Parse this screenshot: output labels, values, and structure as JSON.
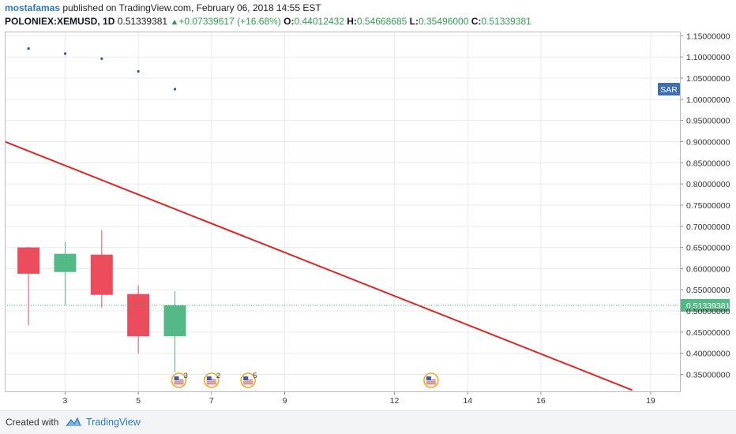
{
  "header": {
    "author": "mostafamas",
    "published_text": "published on TradingView.com, February 06, 2018 14:55 EST",
    "symbol": "POLONIEX:XEMUSD, 1D",
    "last": "0.51339381",
    "change_arrow": "▲",
    "change": "+0.07339617 (+16.68%)",
    "open_label": "O:",
    "open": "0.44012432",
    "high_label": "H:",
    "high": "0.54668685",
    "low_label": "L:",
    "low": "0.35496000",
    "close_label": "C:",
    "close": "0.51339381"
  },
  "footer": {
    "created_with": "Created with",
    "brand": "TradingView",
    "logo_icon": "tradingview-cloud-icon"
  },
  "colors": {
    "up": "#53b987",
    "down": "#eb4d5c",
    "trendline": "#e02424",
    "sar_dots": "#3a4f9c",
    "price_line": "#3cb371",
    "grid": "#e9eaec",
    "price_tag_bg": "#53b987",
    "sar_tag_bg": "#3c6fb4",
    "event_icon": "us-flag-event-icon"
  },
  "chart_data": {
    "type": "candlestick",
    "y_axis": {
      "min": 0.31,
      "max": 1.16,
      "ticks": [
        1.15,
        1.1,
        1.05,
        1.0,
        0.95,
        0.9,
        0.85,
        0.8,
        0.75,
        0.7,
        0.65,
        0.6,
        0.55,
        0.5,
        0.45,
        0.4,
        0.35
      ],
      "tick_labels": [
        "1.15000000",
        "1.10000000",
        "1.05000000",
        "1.00000000",
        "0.95000000",
        "0.90000000",
        "0.85000000",
        "0.80000000",
        "0.75000000",
        "0.70000000",
        "0.65000000",
        "0.60000000",
        "0.55000000",
        "0.50000000",
        "0.45000000",
        "0.40000000",
        "0.35000000"
      ]
    },
    "x_axis": {
      "min": 1.35,
      "max": 19.8,
      "ticks": [
        3,
        5,
        7,
        9,
        12,
        14,
        16,
        19
      ],
      "tick_labels": [
        "3",
        "5",
        "7",
        "9",
        "12",
        "14",
        "16",
        "19"
      ]
    },
    "candles": [
      {
        "x": 2,
        "open": 0.65,
        "high": 0.652,
        "low": 0.466,
        "close": 0.588
      },
      {
        "x": 3,
        "open": 0.592,
        "high": 0.664,
        "low": 0.514,
        "close": 0.635
      },
      {
        "x": 4,
        "open": 0.633,
        "high": 0.691,
        "low": 0.507,
        "close": 0.538
      },
      {
        "x": 5,
        "open": 0.54,
        "high": 0.561,
        "low": 0.4,
        "close": 0.44
      },
      {
        "x": 6,
        "open": 0.44012432,
        "high": 0.54668685,
        "low": 0.35496,
        "close": 0.51339381
      }
    ],
    "sar": [
      {
        "x": 2,
        "y": 1.12
      },
      {
        "x": 3,
        "y": 1.108
      },
      {
        "x": 4,
        "y": 1.096
      },
      {
        "x": 5,
        "y": 1.066
      },
      {
        "x": 6,
        "y": 1.024
      }
    ],
    "sar_label": "SAR",
    "trendline": {
      "x1": 1.35,
      "y1": 0.9,
      "x2": 18.5,
      "y2": 0.313
    },
    "last_price": 0.51339381,
    "last_price_label": "0.51339381",
    "events": [
      {
        "x": 6,
        "count": "3"
      },
      {
        "x": 7,
        "count": "2"
      },
      {
        "x": 8,
        "count": "5"
      },
      {
        "x": 13,
        "count": ""
      }
    ]
  }
}
